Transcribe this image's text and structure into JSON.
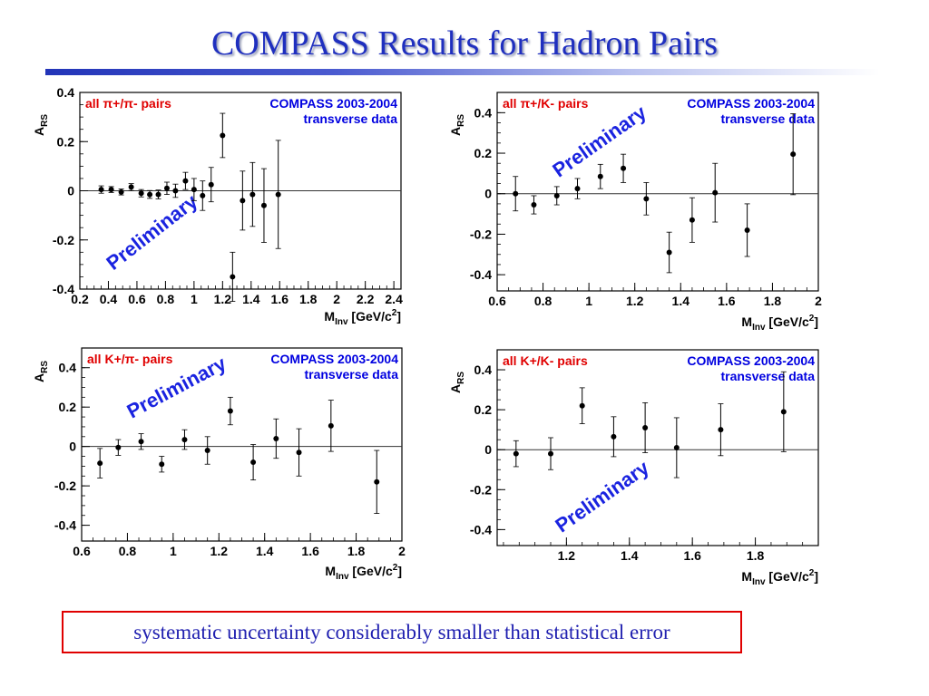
{
  "slide": {
    "title": "COMPASS Results for Hadron Pairs",
    "note": "systematic uncertainty considerably smaller than statistical error"
  },
  "colors": {
    "title": "#1f2fbf",
    "note_text": "#2020b0",
    "note_border": "#e00000",
    "label_red": "#e00000",
    "label_blue": "#0000e0"
  },
  "chart_data": [
    {
      "type": "scatter",
      "ylabel_main": "A",
      "ylabel_sub": "RS",
      "xlabel_main": "M",
      "xlabel_sub": "Inv",
      "xlabel_unit": " [GeV/c",
      "xlabel_sup": "2",
      "xlabel_end": "]",
      "label": "all π+/π- pairs",
      "experiment": "COMPASS 2003-2004",
      "dataset": "transverse data",
      "watermark": "Preliminary",
      "xlim": [
        0.2,
        2.45
      ],
      "ylim": [
        -0.4,
        0.4
      ],
      "xticks": [
        "0.2",
        "0.4",
        "0.6",
        "0.8",
        "1",
        "1.2",
        "1.4",
        "1.6",
        "1.8",
        "2",
        "2.2",
        "2.4"
      ],
      "yticks": [
        "-0.4",
        "-0.2",
        "0",
        "0.2",
        "0.4"
      ],
      "points": [
        {
          "x": 0.35,
          "y": 0.005,
          "err": 0.015
        },
        {
          "x": 0.42,
          "y": 0.005,
          "err": 0.012
        },
        {
          "x": 0.49,
          "y": -0.005,
          "err": 0.012
        },
        {
          "x": 0.56,
          "y": 0.015,
          "err": 0.014
        },
        {
          "x": 0.63,
          "y": -0.01,
          "err": 0.015
        },
        {
          "x": 0.69,
          "y": -0.015,
          "err": 0.016
        },
        {
          "x": 0.75,
          "y": -0.015,
          "err": 0.018
        },
        {
          "x": 0.81,
          "y": 0.01,
          "err": 0.025
        },
        {
          "x": 0.87,
          "y": 0.0,
          "err": 0.027
        },
        {
          "x": 0.94,
          "y": 0.04,
          "err": 0.035
        },
        {
          "x": 1.0,
          "y": 0.005,
          "err": 0.045
        },
        {
          "x": 1.06,
          "y": -0.02,
          "err": 0.06
        },
        {
          "x": 1.12,
          "y": 0.025,
          "err": 0.07
        },
        {
          "x": 1.2,
          "y": 0.225,
          "err": 0.09
        },
        {
          "x": 1.27,
          "y": -0.35,
          "err": 0.1
        },
        {
          "x": 1.34,
          "y": -0.04,
          "err": 0.12
        },
        {
          "x": 1.41,
          "y": -0.015,
          "err": 0.13
        },
        {
          "x": 1.49,
          "y": -0.06,
          "err": 0.15
        },
        {
          "x": 1.59,
          "y": -0.015,
          "err": 0.22
        }
      ]
    },
    {
      "type": "scatter",
      "ylabel_main": "A",
      "ylabel_sub": "RS",
      "xlabel_main": "M",
      "xlabel_sub": "Inv",
      "xlabel_unit": " [GeV/c",
      "xlabel_sup": "2",
      "xlabel_end": "]",
      "label": "all π+/K- pairs",
      "experiment": "COMPASS 2003-2004",
      "dataset": "transverse data",
      "watermark": "Preliminary",
      "xlim": [
        0.6,
        2.0
      ],
      "ylim": [
        -0.48,
        0.5
      ],
      "xticks": [
        "0.6",
        "0.8",
        "1",
        "1.2",
        "1.4",
        "1.6",
        "1.8",
        "2"
      ],
      "yticks": [
        "-0.4",
        "-0.2",
        "0",
        "0.2",
        "0.4"
      ],
      "points": [
        {
          "x": 0.68,
          "y": 0.0,
          "err": 0.085
        },
        {
          "x": 0.76,
          "y": -0.055,
          "err": 0.045
        },
        {
          "x": 0.86,
          "y": -0.01,
          "err": 0.045
        },
        {
          "x": 0.95,
          "y": 0.025,
          "err": 0.05
        },
        {
          "x": 1.05,
          "y": 0.085,
          "err": 0.06
        },
        {
          "x": 1.15,
          "y": 0.125,
          "err": 0.07
        },
        {
          "x": 1.25,
          "y": -0.025,
          "err": 0.08
        },
        {
          "x": 1.35,
          "y": -0.29,
          "err": 0.1
        },
        {
          "x": 1.45,
          "y": -0.13,
          "err": 0.11
        },
        {
          "x": 1.55,
          "y": 0.005,
          "err": 0.145
        },
        {
          "x": 1.69,
          "y": -0.18,
          "err": 0.13
        },
        {
          "x": 1.89,
          "y": 0.195,
          "err": 0.2
        }
      ]
    },
    {
      "type": "scatter",
      "ylabel_main": "A",
      "ylabel_sub": "RS",
      "xlabel_main": "M",
      "xlabel_sub": "Inv",
      "xlabel_unit": " [GeV/c",
      "xlabel_sup": "2",
      "xlabel_end": "]",
      "label": "all K+/π- pairs",
      "experiment": "COMPASS 2003-2004",
      "dataset": "transverse data",
      "watermark": "Preliminary",
      "xlim": [
        0.6,
        2.0
      ],
      "ylim": [
        -0.48,
        0.5
      ],
      "xticks": [
        "0.6",
        "0.8",
        "1",
        "1.2",
        "1.4",
        "1.6",
        "1.8",
        "2"
      ],
      "yticks": [
        "-0.4",
        "-0.2",
        "0",
        "0.2",
        "0.4"
      ],
      "points": [
        {
          "x": 0.68,
          "y": -0.085,
          "err": 0.075
        },
        {
          "x": 0.76,
          "y": -0.005,
          "err": 0.04
        },
        {
          "x": 0.86,
          "y": 0.025,
          "err": 0.04
        },
        {
          "x": 0.95,
          "y": -0.09,
          "err": 0.04
        },
        {
          "x": 1.05,
          "y": 0.035,
          "err": 0.05
        },
        {
          "x": 1.15,
          "y": -0.02,
          "err": 0.07
        },
        {
          "x": 1.25,
          "y": 0.18,
          "err": 0.07
        },
        {
          "x": 1.35,
          "y": -0.08,
          "err": 0.09
        },
        {
          "x": 1.45,
          "y": 0.04,
          "err": 0.1
        },
        {
          "x": 1.55,
          "y": -0.03,
          "err": 0.12
        },
        {
          "x": 1.69,
          "y": 0.105,
          "err": 0.13
        },
        {
          "x": 1.89,
          "y": -0.18,
          "err": 0.16
        }
      ]
    },
    {
      "type": "scatter",
      "ylabel_main": "A",
      "ylabel_sub": "RS",
      "xlabel_main": "M",
      "xlabel_sub": "Inv",
      "xlabel_unit": " [GeV/c",
      "xlabel_sup": "2",
      "xlabel_end": "]",
      "label": "all K+/K- pairs",
      "experiment": "COMPASS 2003-2004",
      "dataset": "transverse data",
      "watermark": "Preliminary",
      "xlim": [
        0.98,
        2.0
      ],
      "ylim": [
        -0.48,
        0.5
      ],
      "xticks": [
        "1.2",
        "1.4",
        "1.6",
        "1.8"
      ],
      "yticks": [
        "-0.4",
        "-0.2",
        "0",
        "0.2",
        "0.4"
      ],
      "points": [
        {
          "x": 1.04,
          "y": -0.02,
          "err": 0.065
        },
        {
          "x": 1.15,
          "y": -0.02,
          "err": 0.08
        },
        {
          "x": 1.25,
          "y": 0.22,
          "err": 0.09
        },
        {
          "x": 1.35,
          "y": 0.065,
          "err": 0.1
        },
        {
          "x": 1.45,
          "y": 0.11,
          "err": 0.125
        },
        {
          "x": 1.55,
          "y": 0.01,
          "err": 0.15
        },
        {
          "x": 1.69,
          "y": 0.1,
          "err": 0.13
        },
        {
          "x": 1.89,
          "y": 0.19,
          "err": 0.2
        }
      ]
    }
  ]
}
